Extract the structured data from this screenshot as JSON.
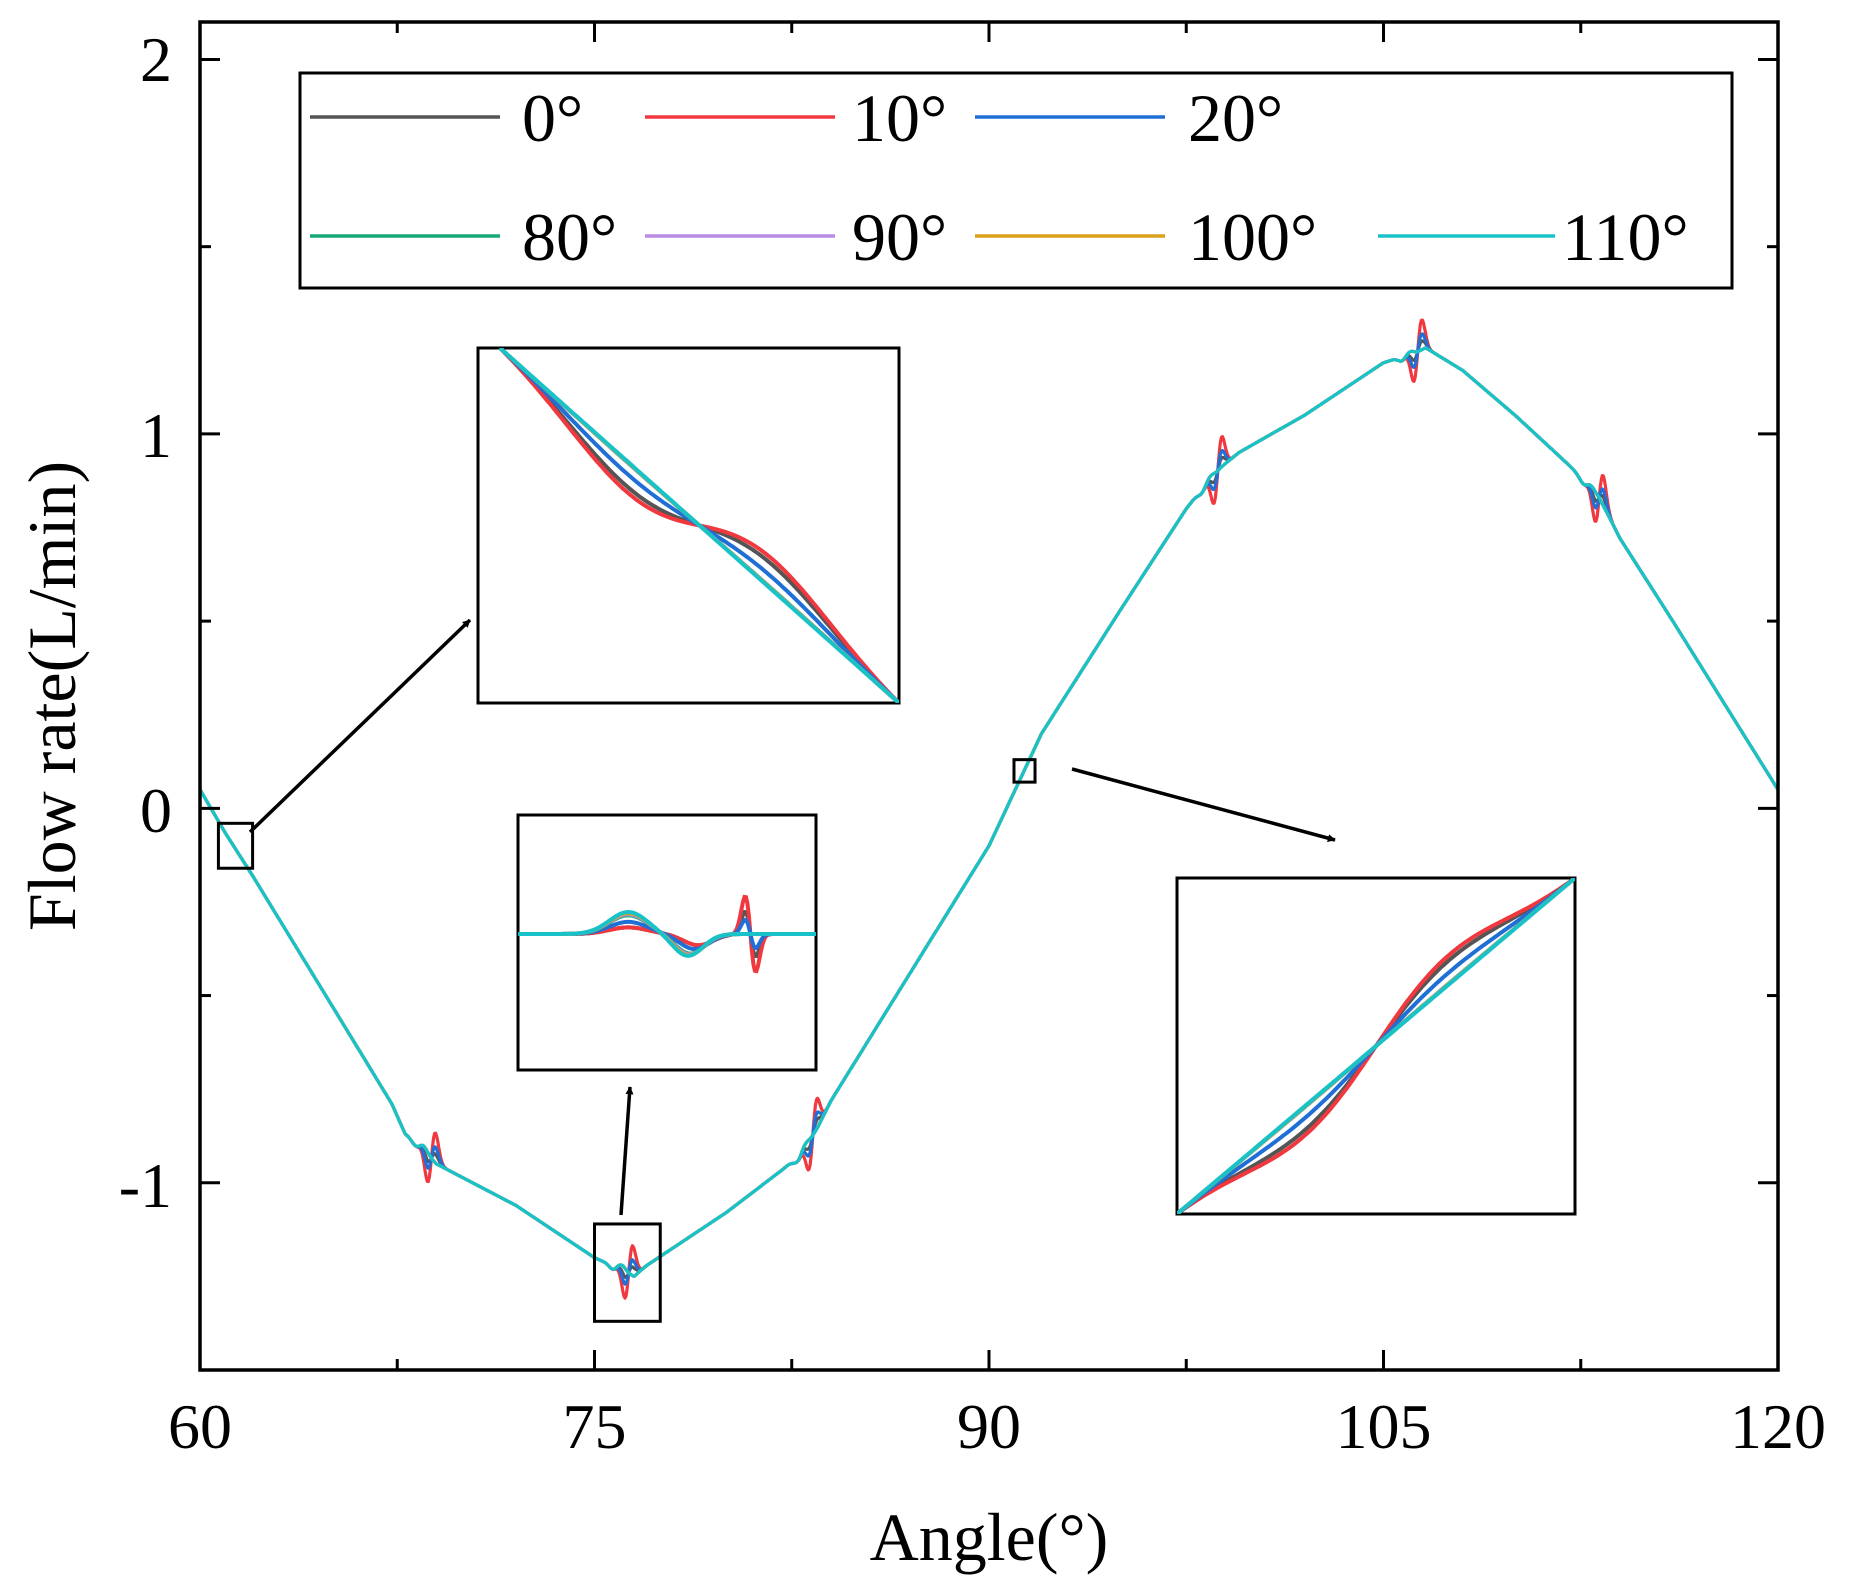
{
  "chart_data": {
    "type": "line",
    "xlabel": "Angle(°)",
    "ylabel": "Flow rate(L/min)",
    "xlim": [
      60,
      120
    ],
    "ylim": [
      -1.5,
      2.1
    ],
    "xticks": [
      60,
      75,
      90,
      105,
      120
    ],
    "xtick_labels": [
      "60",
      "75",
      "90",
      "105",
      "120"
    ],
    "yticks": [
      -1,
      0,
      1,
      2
    ],
    "ytick_labels": [
      "-1",
      "0",
      "1",
      "2"
    ],
    "legend_position": "top",
    "series": [
      {
        "name": "0°",
        "color": "#555555",
        "spike": 0.025
      },
      {
        "name": "10°",
        "color": "#f0383e",
        "spike": 0.085
      },
      {
        "name": "20°",
        "color": "#1f6fd6",
        "spike": 0.045
      },
      {
        "name": "80°",
        "color": "#16a876",
        "spike": 0.0
      },
      {
        "name": "90°",
        "color": "#b98be6",
        "spike": 0.0
      },
      {
        "name": "100°",
        "color": "#d9a21a",
        "spike": 0.0
      },
      {
        "name": "110°",
        "color": "#17c3c8",
        "spike": 0.0
      }
    ],
    "base_curve": {
      "x": [
        60,
        61,
        62,
        64,
        66,
        67.3,
        67.8,
        68.5,
        69,
        72,
        75,
        75.6,
        76.1,
        76.5,
        77,
        80,
        82.8,
        83.5,
        84,
        90,
        92,
        95,
        97.5,
        98.2,
        98.8,
        99.5,
        102,
        105,
        106,
        106.6,
        108,
        110,
        112,
        113.2,
        114,
        116,
        120
      ],
      "y": [
        0.05,
        -0.07,
        -0.18,
        -0.41,
        -0.64,
        -0.79,
        -0.87,
        -0.91,
        -0.95,
        -1.06,
        -1.2,
        -1.22,
        -1.23,
        -1.25,
        -1.22,
        -1.08,
        -0.93,
        -0.85,
        -0.78,
        -0.1,
        0.2,
        0.53,
        0.8,
        0.86,
        0.91,
        0.95,
        1.05,
        1.19,
        1.21,
        1.23,
        1.17,
        1.05,
        0.92,
        0.83,
        0.72,
        0.5,
        0.05
      ]
    },
    "disturbances_x": [
      68.8,
      76.3,
      83.3,
      98.7,
      106.3,
      113.2
    ],
    "zoom_boxes_data": [
      {
        "x": [
          60.7,
          62.0
        ],
        "y": [
          -0.16,
          -0.04
        ]
      },
      {
        "x": [
          75.0,
          77.5
        ],
        "y": [
          -1.37,
          -1.11
        ]
      },
      {
        "x": [
          90.95,
          91.75
        ],
        "y": [
          0.07,
          0.13
        ]
      }
    ]
  }
}
